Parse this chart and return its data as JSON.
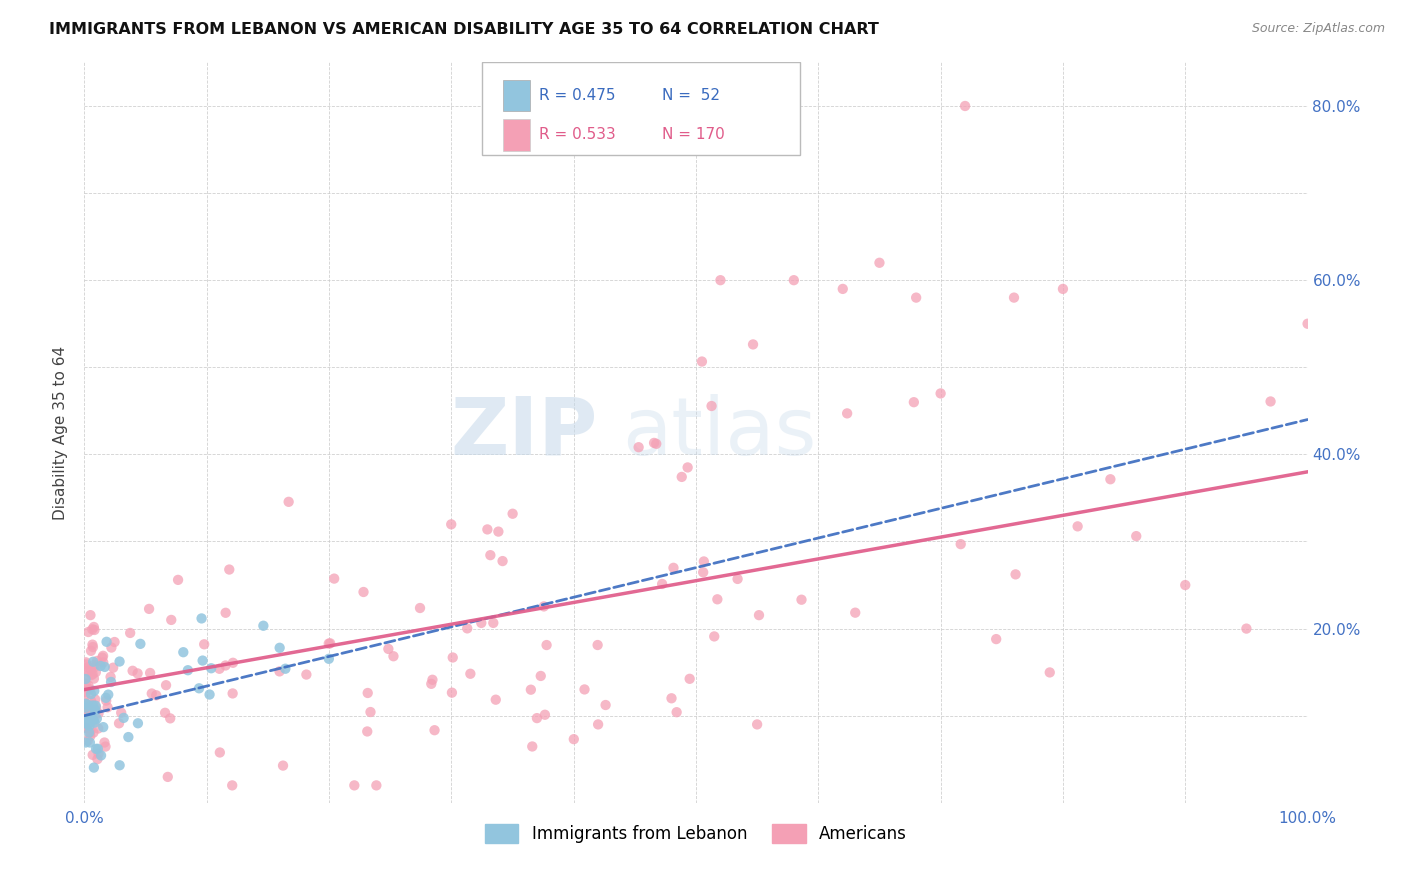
{
  "title": "IMMIGRANTS FROM LEBANON VS AMERICAN DISABILITY AGE 35 TO 64 CORRELATION CHART",
  "source": "Source: ZipAtlas.com",
  "ylabel": "Disability Age 35 to 64",
  "xlim": [
    0.0,
    1.0
  ],
  "ylim": [
    0.0,
    0.85
  ],
  "x_ticks": [
    0.0,
    0.1,
    0.2,
    0.3,
    0.4,
    0.5,
    0.6,
    0.7,
    0.8,
    0.9,
    1.0
  ],
  "y_ticks": [
    0.0,
    0.1,
    0.2,
    0.3,
    0.4,
    0.5,
    0.6,
    0.7,
    0.8
  ],
  "x_tick_labels": [
    "0.0%",
    "",
    "",
    "",
    "",
    "",
    "",
    "",
    "",
    "",
    "100.0%"
  ],
  "y_tick_labels_right": [
    "",
    "",
    "20.0%",
    "",
    "40.0%",
    "",
    "60.0%",
    "",
    "80.0%"
  ],
  "legend_r_blue": "R = 0.475",
  "legend_n_blue": "N =  52",
  "legend_r_pink": "R = 0.533",
  "legend_n_pink": "N = 170",
  "legend_label_blue": "Immigrants from Lebanon",
  "legend_label_pink": "Americans",
  "blue_color": "#92c5de",
  "pink_color": "#f4a0b5",
  "blue_line_color": "#3a6bbf",
  "pink_line_color": "#e05c8a",
  "watermark_zip": "ZIP",
  "watermark_atlas": "atlas",
  "blue_trend_x0": 0.0,
  "blue_trend_y0": 0.1,
  "blue_trend_x1": 1.0,
  "blue_trend_y1": 0.44,
  "pink_trend_x0": 0.0,
  "pink_trend_y0": 0.13,
  "pink_trend_x1": 1.0,
  "pink_trend_y1": 0.38
}
